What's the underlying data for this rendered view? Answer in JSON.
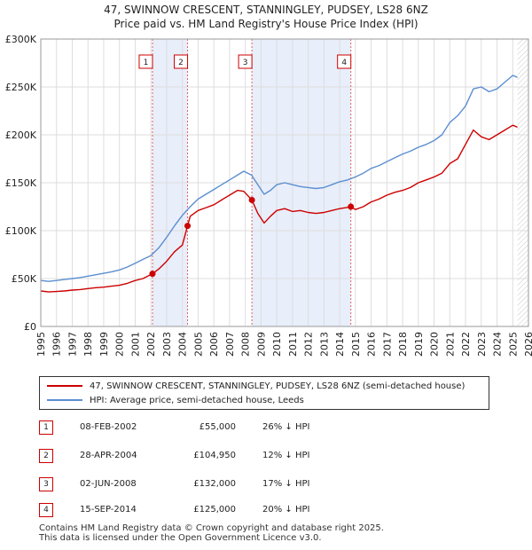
{
  "title": {
    "line1": "47, SWINNOW CRESCENT, STANNINGLEY, PUDSEY, LS28 6NZ",
    "line2": "Price paid vs. HM Land Registry's House Price Index (HPI)"
  },
  "chart_data": {
    "type": "line",
    "title": "Price paid vs. HM Land Registry's House Price Index (HPI)",
    "xlabel": "",
    "ylabel": "",
    "xlim": [
      1995,
      2026
    ],
    "ylim": [
      0,
      300000
    ],
    "y_ticks": [
      0,
      50000,
      100000,
      150000,
      200000,
      250000,
      300000
    ],
    "y_tick_labels": [
      "£0",
      "£50K",
      "£100K",
      "£150K",
      "£200K",
      "£250K",
      "£300K"
    ],
    "x_ticks": [
      1995,
      1996,
      1997,
      1998,
      1999,
      2000,
      2001,
      2002,
      2003,
      2004,
      2005,
      2006,
      2007,
      2008,
      2009,
      2010,
      2011,
      2012,
      2013,
      2014,
      2015,
      2016,
      2017,
      2018,
      2019,
      2020,
      2021,
      2022,
      2023,
      2024,
      2025,
      2026
    ],
    "x_tick_labels": [
      "1995",
      "1996",
      "1997",
      "1998",
      "1999",
      "2000",
      "2001",
      "2002",
      "2003",
      "2004",
      "2005",
      "2006",
      "2007",
      "2008",
      "2009",
      "2010",
      "2011",
      "2012",
      "2013",
      "2014",
      "2015",
      "2016",
      "2017",
      "2018",
      "2019",
      "2020",
      "2021",
      "2022",
      "2023",
      "2024",
      "2025",
      "2026"
    ],
    "grid": true,
    "hatched_future_from": 2025.3,
    "shaded_periods": [
      [
        2002.1,
        2004.33
      ],
      [
        2008.42,
        2014.71
      ]
    ],
    "series": [
      {
        "name": "47, SWINNOW CRESCENT, STANNINGLEY, PUDSEY, LS28 6NZ (semi-detached house)",
        "color": "#cc0000",
        "x": [
          1995.0,
          1995.5,
          1996.0,
          1996.5,
          1997.0,
          1997.5,
          1998.0,
          1998.5,
          1999.0,
          1999.5,
          2000.0,
          2000.5,
          2001.0,
          2001.5,
          2002.1,
          2002.5,
          2003.0,
          2003.5,
          2004.0,
          2004.33,
          2004.5,
          2005.0,
          2005.5,
          2006.0,
          2006.5,
          2007.0,
          2007.5,
          2007.9,
          2008.42,
          2008.8,
          2009.2,
          2009.6,
          2010.0,
          2010.5,
          2011.0,
          2011.5,
          2012.0,
          2012.5,
          2013.0,
          2013.5,
          2014.0,
          2014.4,
          2014.71,
          2015.0,
          2015.5,
          2016.0,
          2016.5,
          2017.0,
          2017.5,
          2018.0,
          2018.5,
          2019.0,
          2019.5,
          2020.0,
          2020.5,
          2021.0,
          2021.5,
          2022.0,
          2022.5,
          2023.0,
          2023.5,
          2024.0,
          2024.5,
          2025.0,
          2025.3
        ],
        "values": [
          37000,
          36000,
          36500,
          37000,
          38000,
          38500,
          39500,
          40500,
          41000,
          42000,
          43000,
          45000,
          48000,
          50000,
          55000,
          60000,
          68000,
          78000,
          85000,
          104950,
          115000,
          121000,
          124000,
          127000,
          132000,
          137000,
          142000,
          141000,
          132000,
          118000,
          108000,
          115000,
          121000,
          123000,
          120000,
          121000,
          119000,
          118000,
          119000,
          121000,
          123000,
          124000,
          125000,
          122000,
          125000,
          130000,
          133000,
          137000,
          140000,
          142000,
          145000,
          150000,
          153000,
          156000,
          160000,
          170000,
          175000,
          190000,
          205000,
          198000,
          195000,
          200000,
          205000,
          210000,
          208000
        ]
      },
      {
        "name": "HPI: Average price, semi-detached house, Leeds",
        "color": "#5b8fd0",
        "x": [
          1995.0,
          1995.5,
          1996.0,
          1996.5,
          1997.0,
          1997.5,
          1998.0,
          1998.5,
          1999.0,
          1999.5,
          2000.0,
          2000.5,
          2001.0,
          2001.5,
          2002.0,
          2002.5,
          2003.0,
          2003.5,
          2004.0,
          2004.5,
          2005.0,
          2005.5,
          2006.0,
          2006.5,
          2007.0,
          2007.5,
          2007.9,
          2008.4,
          2008.8,
          2009.2,
          2009.6,
          2010.0,
          2010.5,
          2011.0,
          2011.5,
          2012.0,
          2012.5,
          2013.0,
          2013.5,
          2014.0,
          2014.5,
          2015.0,
          2015.5,
          2016.0,
          2016.5,
          2017.0,
          2017.5,
          2018.0,
          2018.5,
          2019.0,
          2019.5,
          2020.0,
          2020.5,
          2021.0,
          2021.5,
          2022.0,
          2022.5,
          2023.0,
          2023.5,
          2024.0,
          2024.5,
          2025.0,
          2025.3
        ],
        "values": [
          48000,
          47000,
          48000,
          49000,
          50000,
          51000,
          52500,
          54000,
          55500,
          57000,
          59000,
          62000,
          66000,
          70000,
          74000,
          82000,
          93000,
          105000,
          116000,
          125000,
          133000,
          138000,
          143000,
          148000,
          153000,
          158000,
          162000,
          158000,
          148000,
          138000,
          142000,
          148000,
          150000,
          148000,
          146000,
          145000,
          144000,
          145000,
          148000,
          151000,
          153000,
          156000,
          160000,
          165000,
          168000,
          172000,
          176000,
          180000,
          183000,
          187000,
          190000,
          194000,
          200000,
          213000,
          220000,
          230000,
          248000,
          250000,
          245000,
          248000,
          255000,
          262000,
          260000
        ]
      }
    ],
    "markers": [
      {
        "label": "1",
        "x": 2002.1,
        "y": 55000
      },
      {
        "label": "2",
        "x": 2004.33,
        "y": 104950
      },
      {
        "label": "3",
        "x": 2008.42,
        "y": 132000
      },
      {
        "label": "4",
        "x": 2014.71,
        "y": 125000
      }
    ]
  },
  "legend": {
    "red_label": "47, SWINNOW CRESCENT, STANNINGLEY, PUDSEY, LS28 6NZ (semi-detached house)",
    "blue_label": "HPI: Average price, semi-detached house, Leeds",
    "red_color": "#cc0000",
    "blue_color": "#5b8fd0"
  },
  "transactions": [
    {
      "num": "1",
      "date": "08-FEB-2002",
      "price": "£55,000",
      "hpi": "26% ↓ HPI"
    },
    {
      "num": "2",
      "date": "28-APR-2004",
      "price": "£104,950",
      "hpi": "12% ↓ HPI"
    },
    {
      "num": "3",
      "date": "02-JUN-2008",
      "price": "£132,000",
      "hpi": "17% ↓ HPI"
    },
    {
      "num": "4",
      "date": "15-SEP-2014",
      "price": "£125,000",
      "hpi": "20% ↓ HPI"
    }
  ],
  "footer": {
    "line1": "Contains HM Land Registry data © Crown copyright and database right 2025.",
    "line2": "This data is licensed under the Open Government Licence v3.0."
  }
}
